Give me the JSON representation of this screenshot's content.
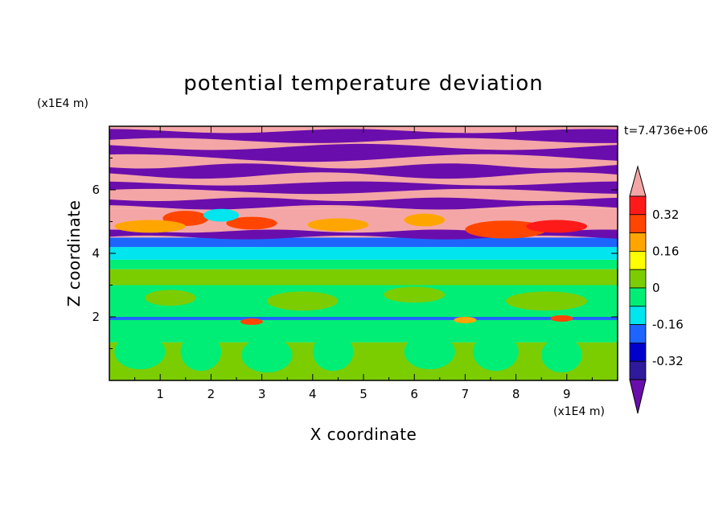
{
  "chart_data": {
    "type": "heatmap",
    "title": "potential temperature deviation",
    "xlabel": "X coordinate",
    "ylabel": "Z coordinate",
    "x_scale_label": "(x1E4 m)",
    "y_scale_label": "(x1E4 m)",
    "time_label": "t=7.4736e+06",
    "xlim": [
      0,
      10
    ],
    "ylim": [
      0,
      8
    ],
    "x_ticks": [
      "1",
      "2",
      "3",
      "4",
      "5",
      "6",
      "7",
      "8",
      "9"
    ],
    "y_ticks": [
      "2",
      "4",
      "6"
    ],
    "grid": false,
    "legend": {
      "placement": "right",
      "type": "colorbar",
      "labels": [
        "0.32",
        "0.16",
        "0",
        "-0.16",
        "-0.32"
      ],
      "levels": [
        -0.4,
        -0.32,
        -0.24,
        -0.16,
        -0.08,
        0,
        0.08,
        0.16,
        0.24,
        0.32,
        0.4
      ],
      "colors": [
        "#6a0dad",
        "#2e1a9a",
        "#0000cd",
        "#1e64ff",
        "#00e5ee",
        "#00ee76",
        "#7ccd00",
        "#ffff00",
        "#ffa500",
        "#ff4500",
        "#ff1a1a",
        "#f4a6a6"
      ]
    },
    "bands": [
      {
        "z": [
          0.0,
          1.2
        ],
        "level": "0.04"
      },
      {
        "z": [
          1.2,
          1.9
        ],
        "level": "-0.04"
      },
      {
        "z": [
          1.9,
          2.0
        ],
        "level": "-0.2"
      },
      {
        "z": [
          2.0,
          3.0
        ],
        "level": "0.02"
      },
      {
        "z": [
          3.0,
          3.5
        ],
        "level": "-0.02"
      },
      {
        "z": [
          3.5,
          3.8
        ],
        "level": "0.02"
      },
      {
        "z": [
          3.8,
          4.2
        ],
        "level": "-0.12"
      },
      {
        "z": [
          4.2,
          4.5
        ],
        "level": "-0.2"
      },
      {
        "z": [
          4.5,
          5.4
        ],
        "level": "0.4"
      },
      {
        "z": [
          5.4,
          8.0
        ],
        "level": "alternating 0.4 / -0.4"
      }
    ]
  }
}
